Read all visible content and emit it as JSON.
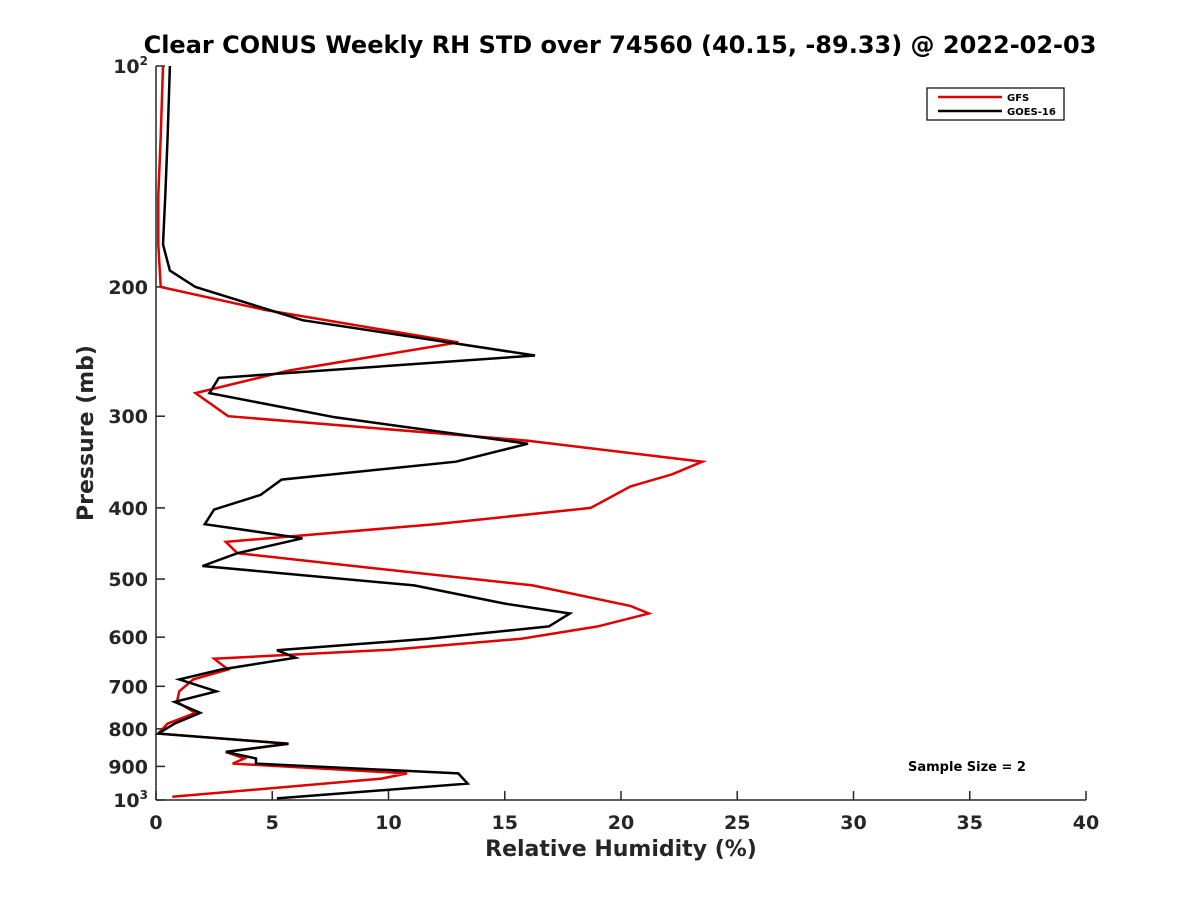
{
  "chart_data": {
    "type": "line",
    "title": "Clear CONUS Weekly RH STD over 74560 (40.15, -89.33) @ 2022-02-03",
    "xlabel": "Relative Humidity (%)",
    "ylabel": "Pressure (mb)",
    "xlim": [
      0,
      40
    ],
    "ylim": [
      100,
      1000
    ],
    "y_scale": "log",
    "y_reversed": true,
    "grid": false,
    "legend_position": "top-right",
    "x_ticks": [
      "0",
      "5",
      "10",
      "15",
      "20",
      "25",
      "30",
      "35",
      "40"
    ],
    "y_ticks": [
      {
        "value": 100,
        "base": "10",
        "sup": "2",
        "label": ""
      },
      {
        "value": 200,
        "base": "",
        "sup": "",
        "label": "200"
      },
      {
        "value": 300,
        "base": "",
        "sup": "",
        "label": "300"
      },
      {
        "value": 400,
        "base": "",
        "sup": "",
        "label": "400"
      },
      {
        "value": 500,
        "base": "",
        "sup": "",
        "label": "500"
      },
      {
        "value": 600,
        "base": "",
        "sup": "",
        "label": "600"
      },
      {
        "value": 700,
        "base": "",
        "sup": "",
        "label": "700"
      },
      {
        "value": 800,
        "base": "",
        "sup": "",
        "label": "800"
      },
      {
        "value": 900,
        "base": "",
        "sup": "",
        "label": "900"
      },
      {
        "value": 1000,
        "base": "10",
        "sup": "3",
        "label": ""
      }
    ],
    "series": [
      {
        "name": "GFS",
        "color": "#e00000",
        "points": [
          [
            0.3,
            100
          ],
          [
            0.2,
            125
          ],
          [
            0.1,
            150
          ],
          [
            0.1,
            175
          ],
          [
            0.2,
            200
          ],
          [
            4.7,
            215
          ],
          [
            13.0,
            238
          ],
          [
            5.7,
            260
          ],
          [
            1.7,
            279
          ],
          [
            3.1,
            300
          ],
          [
            16.0,
            324
          ],
          [
            23.5,
            346
          ],
          [
            22.2,
            360
          ],
          [
            20.4,
            374
          ],
          [
            18.7,
            400
          ],
          [
            12.0,
            421
          ],
          [
            3.0,
            445
          ],
          [
            3.5,
            461
          ],
          [
            8.5,
            480
          ],
          [
            16.2,
            510
          ],
          [
            20.4,
            544
          ],
          [
            21.2,
            557
          ],
          [
            19.0,
            580
          ],
          [
            15.7,
            603
          ],
          [
            10.1,
            624
          ],
          [
            2.5,
            642
          ],
          [
            3.1,
            664
          ],
          [
            1.6,
            685
          ],
          [
            1.0,
            711
          ],
          [
            0.9,
            735
          ],
          [
            1.7,
            761
          ],
          [
            0.5,
            787
          ],
          [
            0.1,
            812
          ],
          [
            5.7,
            838
          ],
          [
            3.0,
            860
          ],
          [
            3.8,
            878
          ],
          [
            3.3,
            892
          ],
          [
            10.8,
            920
          ],
          [
            9.7,
            935
          ],
          [
            0.7,
            990
          ]
        ]
      },
      {
        "name": "GOES-16",
        "color": "#000000",
        "points": [
          [
            0.6,
            100
          ],
          [
            0.5,
            125
          ],
          [
            0.4,
            150
          ],
          [
            0.3,
            175
          ],
          [
            0.6,
            190
          ],
          [
            1.7,
            200
          ],
          [
            6.3,
            222
          ],
          [
            16.3,
            248
          ],
          [
            2.7,
            266
          ],
          [
            2.3,
            279
          ],
          [
            7.7,
            301
          ],
          [
            16.0,
            327
          ],
          [
            12.9,
            346
          ],
          [
            5.4,
            366
          ],
          [
            4.5,
            384
          ],
          [
            2.5,
            402
          ],
          [
            2.1,
            421
          ],
          [
            6.3,
            440
          ],
          [
            3.5,
            461
          ],
          [
            2.0,
            480
          ],
          [
            11.1,
            510
          ],
          [
            15.0,
            540
          ],
          [
            17.8,
            557
          ],
          [
            16.9,
            580
          ],
          [
            11.7,
            603
          ],
          [
            5.2,
            625
          ],
          [
            6.0,
            640
          ],
          [
            2.8,
            664
          ],
          [
            1.0,
            685
          ],
          [
            2.6,
            711
          ],
          [
            0.8,
            735
          ],
          [
            1.9,
            761
          ],
          [
            0.8,
            787
          ],
          [
            0.1,
            812
          ],
          [
            5.7,
            838
          ],
          [
            3.0,
            860
          ],
          [
            4.3,
            878
          ],
          [
            4.3,
            892
          ],
          [
            13.0,
            920
          ],
          [
            13.4,
            950
          ],
          [
            5.2,
            995
          ]
        ]
      }
    ],
    "annotation": "Sample Size = 2"
  }
}
